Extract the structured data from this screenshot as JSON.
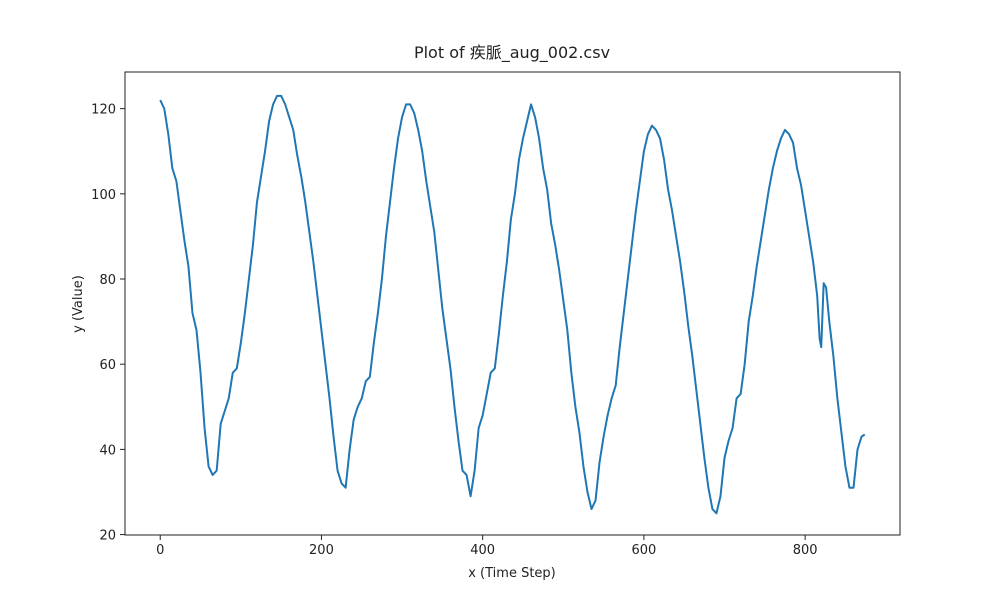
{
  "chart_data": {
    "type": "line",
    "title": "Plot of 疾脈_aug_002.csv",
    "x_label": "x (Time Step)",
    "y_label": "y (Value)",
    "x": [
      0,
      5,
      10,
      15,
      20,
      25,
      30,
      35,
      40,
      45,
      50,
      55,
      60,
      65,
      70,
      75,
      80,
      85,
      90,
      95,
      100,
      105,
      110,
      115,
      120,
      125,
      130,
      135,
      140,
      145,
      150,
      155,
      160,
      165,
      170,
      175,
      180,
      185,
      190,
      195,
      200,
      205,
      210,
      215,
      220,
      225,
      230,
      235,
      240,
      245,
      250,
      255,
      260,
      265,
      270,
      275,
      280,
      285,
      290,
      295,
      300,
      305,
      310,
      315,
      320,
      325,
      330,
      335,
      340,
      345,
      350,
      355,
      360,
      365,
      370,
      375,
      380,
      385,
      390,
      395,
      400,
      405,
      410,
      415,
      420,
      425,
      430,
      435,
      440,
      445,
      450,
      455,
      460,
      465,
      470,
      475,
      480,
      485,
      490,
      495,
      500,
      505,
      510,
      515,
      520,
      525,
      530,
      535,
      540,
      545,
      550,
      555,
      560,
      565,
      570,
      575,
      580,
      585,
      590,
      595,
      600,
      605,
      610,
      615,
      620,
      625,
      630,
      635,
      640,
      645,
      650,
      655,
      660,
      665,
      670,
      675,
      680,
      685,
      690,
      695,
      700,
      705,
      710,
      715,
      720,
      725,
      730,
      735,
      740,
      745,
      750,
      755,
      760,
      765,
      770,
      775,
      780,
      785,
      790,
      795,
      800,
      805,
      810,
      815,
      818,
      820,
      823,
      826,
      830,
      835,
      840,
      845,
      850,
      855,
      860,
      865,
      870,
      874
    ],
    "series": [
      {
        "name": "y",
        "color": "#1f77b4",
        "values": [
          122,
          120,
          114,
          106,
          103,
          96,
          89,
          83,
          72,
          68,
          58,
          45,
          36,
          34,
          35,
          46,
          49,
          52,
          58,
          59,
          65,
          72,
          80,
          88,
          98,
          104,
          110,
          117,
          121,
          123,
          123,
          121,
          118,
          115,
          109,
          104,
          98,
          91,
          84,
          76,
          68,
          60,
          52,
          43,
          35,
          32,
          31,
          40,
          47,
          50,
          52,
          56,
          57,
          65,
          72,
          80,
          90,
          98,
          106,
          113,
          118,
          121,
          121,
          119,
          115,
          110,
          103,
          97,
          91,
          82,
          73,
          66,
          59,
          50,
          42,
          35,
          34,
          29,
          35,
          45,
          48,
          53,
          58,
          59,
          67,
          76,
          84,
          94,
          100,
          108,
          113,
          117,
          121,
          118,
          113,
          106,
          101,
          93,
          88,
          82,
          75,
          68,
          58,
          50,
          44,
          36,
          30,
          26,
          28,
          37,
          43,
          48,
          52,
          55,
          64,
          72,
          80,
          88,
          96,
          103,
          110,
          114,
          116,
          115,
          113,
          108,
          101,
          96,
          90,
          84,
          77,
          69,
          62,
          54,
          46,
          38,
          31,
          26,
          25,
          29,
          38,
          42,
          45,
          52,
          53,
          60,
          70,
          76,
          83,
          89,
          95,
          101,
          106,
          110,
          113,
          115,
          114,
          112,
          106,
          102,
          96,
          90,
          84,
          76,
          66,
          64,
          79,
          78,
          70,
          62,
          52,
          44,
          36,
          31,
          31,
          40,
          43,
          43.5
        ]
      }
    ],
    "xlim": [
      -43.7,
      917.7
    ],
    "ylim": [
      19.9,
      128.6
    ],
    "xticks": [
      0,
      200,
      400,
      600,
      800
    ],
    "yticks": [
      20,
      40,
      60,
      80,
      100,
      120
    ],
    "grid": false
  }
}
